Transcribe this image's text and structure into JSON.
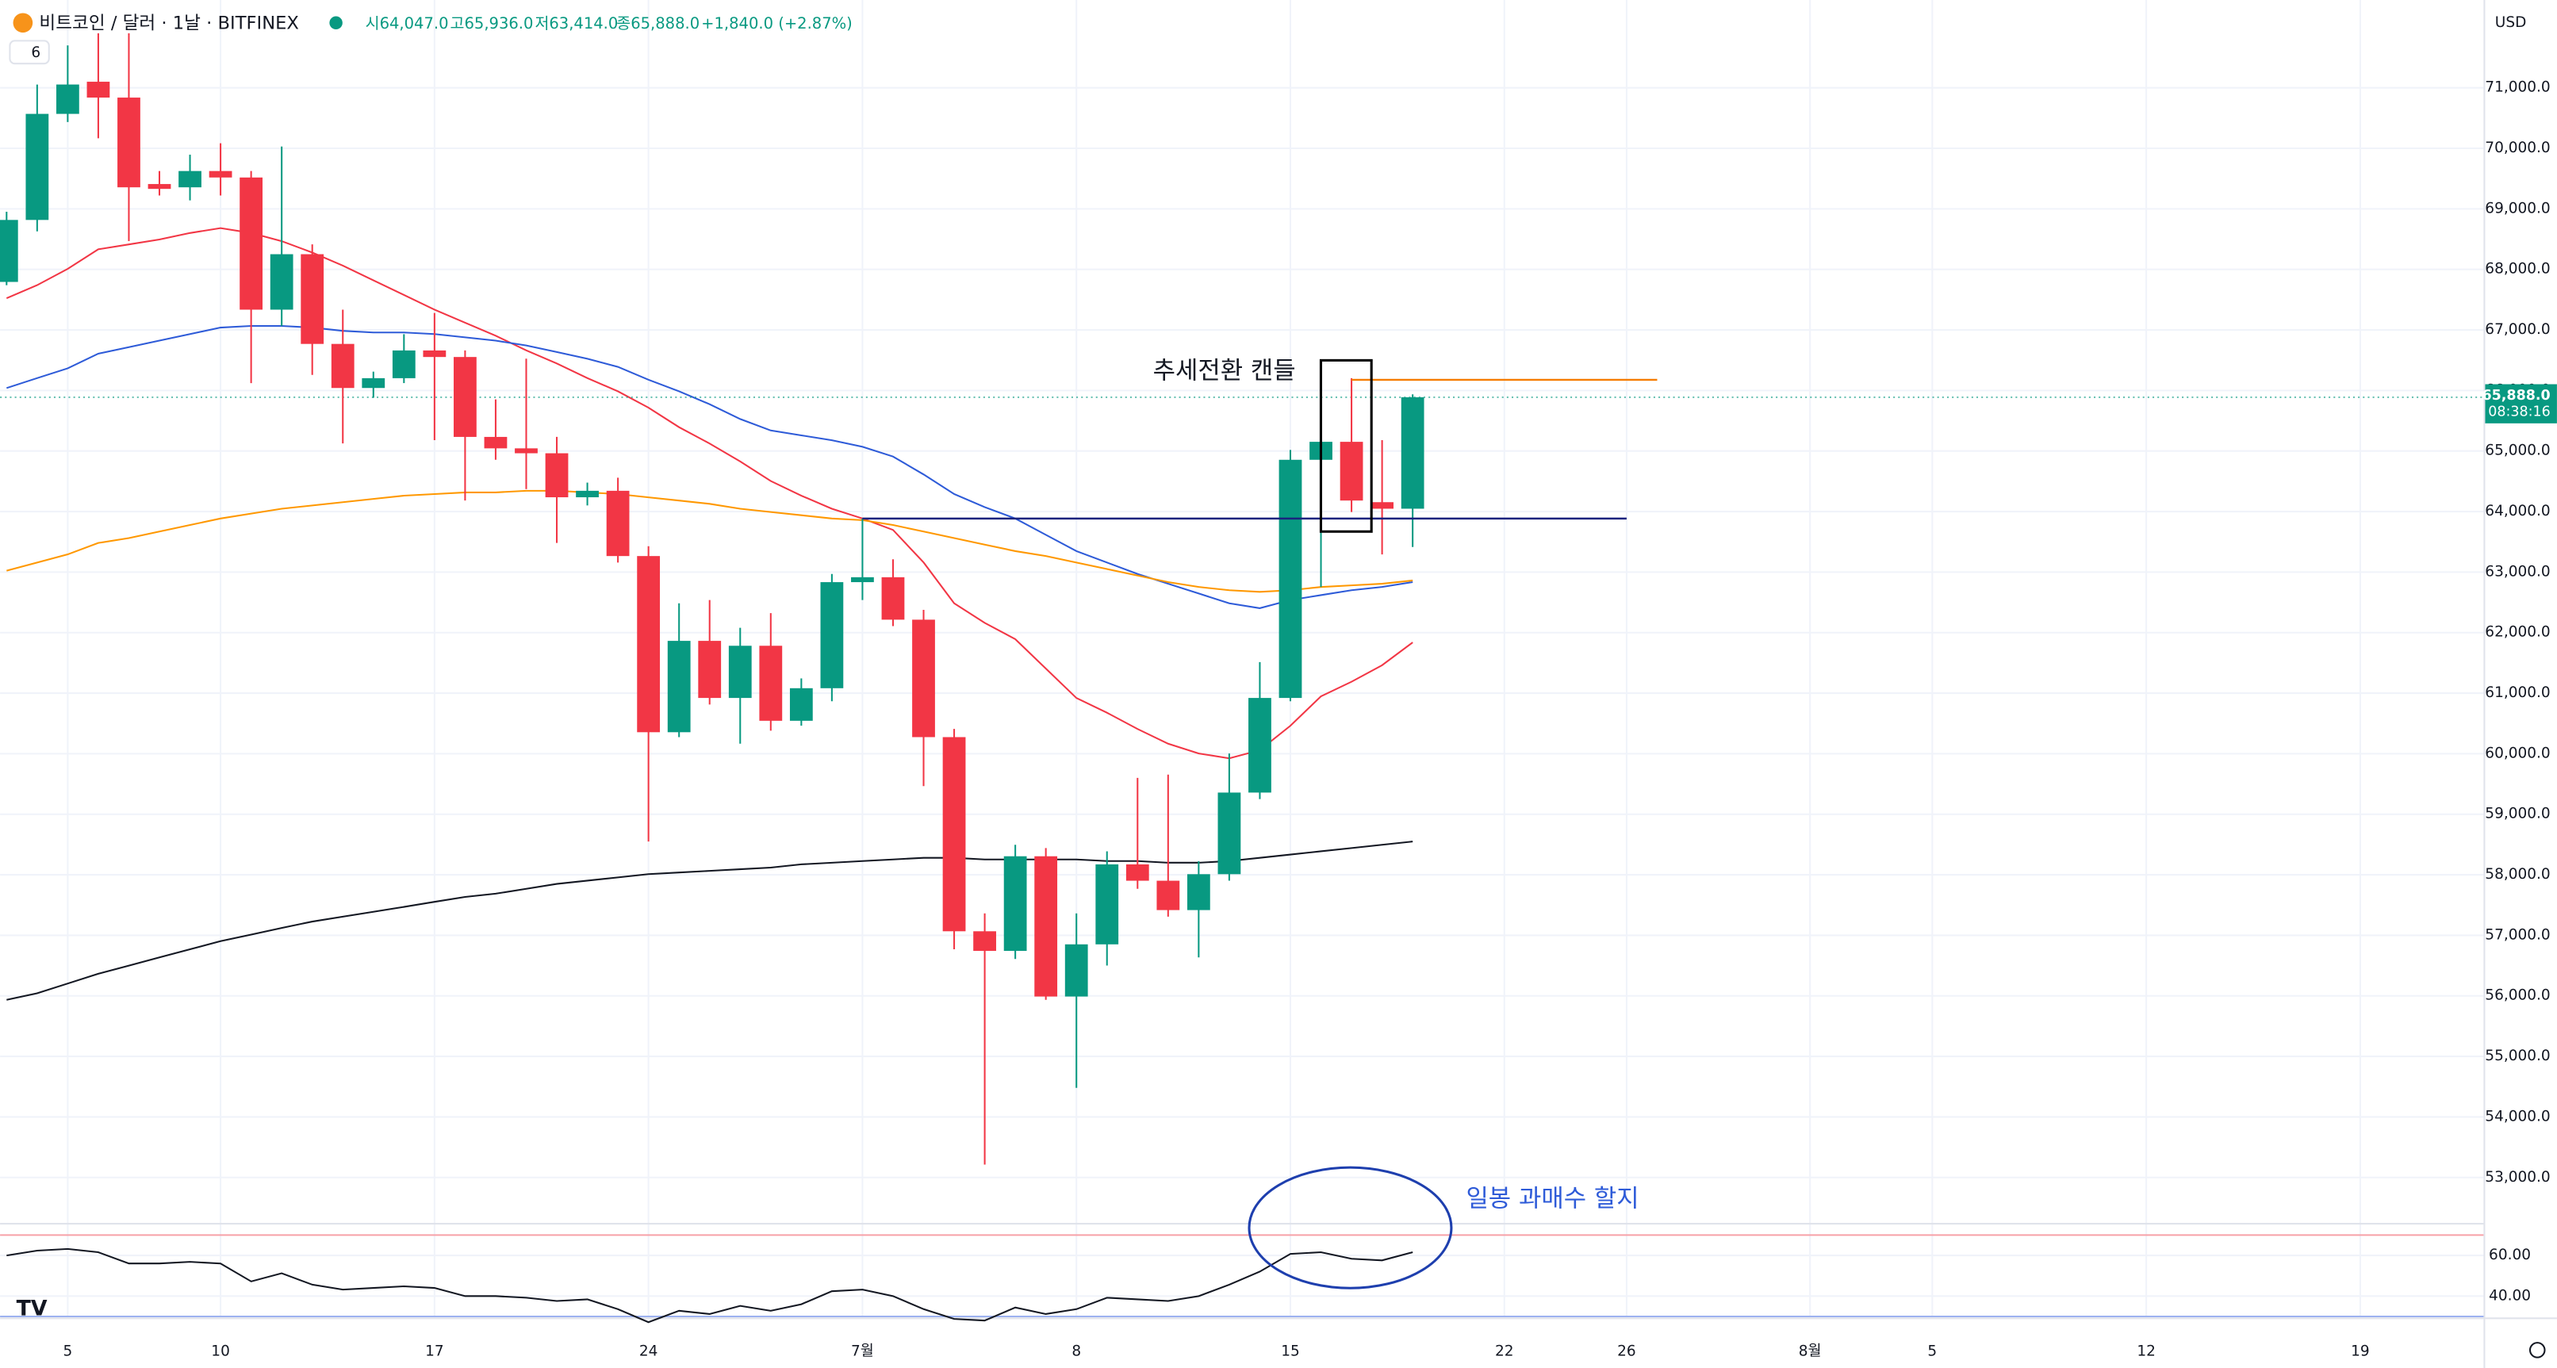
{
  "header": {
    "symbol": "비트코인 / 달러 · 1날 · BITFINEX",
    "ohlc": [
      "시64,047.0",
      "고65,936.0",
      "저63,414.0",
      "종65,888.0",
      "+1,840.0 (+2.87%)"
    ],
    "indicators": "6",
    "currency": "USD"
  },
  "chart_data": [
    {
      "type": "candlestick",
      "categories": [
        "06-03",
        "06-04",
        "06-05",
        "06-06",
        "06-07",
        "06-08",
        "06-09",
        "06-10",
        "06-11",
        "06-12",
        "06-13",
        "06-14",
        "06-15",
        "06-16",
        "06-17",
        "06-18",
        "06-19",
        "06-20",
        "06-21",
        "06-22",
        "06-23",
        "06-24",
        "06-25",
        "06-26",
        "06-27",
        "06-28",
        "06-29",
        "06-30",
        "07-01",
        "07-02",
        "07-03",
        "07-04",
        "07-05",
        "07-06",
        "07-07",
        "07-08",
        "07-09",
        "07-10",
        "07-11",
        "07-12",
        "07-13",
        "07-14",
        "07-15",
        "07-16",
        "07-17",
        "07-18",
        "07-19"
      ],
      "open": [
        67793,
        68817,
        70569,
        71100,
        70838,
        69410,
        69356,
        69625,
        69518,
        67335,
        68251,
        66769,
        66041,
        66203,
        66661,
        66553,
        65233,
        65044,
        64963,
        64236,
        64343,
        63265,
        60355,
        61864,
        60921,
        61783,
        60544,
        61082,
        62834,
        62915,
        62214,
        60274,
        57067,
        56743,
        58306,
        55989,
        56851,
        58172,
        57902,
        57417,
        58010,
        59358,
        60921,
        64855,
        65152,
        64155,
        64047
      ],
      "high": [
        68952,
        71054,
        71700,
        71900,
        71900,
        69625,
        69895,
        70084,
        69625,
        70030,
        68413,
        67335,
        66311,
        66930,
        67281,
        66661,
        65853,
        66526,
        65233,
        64478,
        64559,
        63427,
        62484,
        62538,
        62080,
        62322,
        61244,
        62969,
        63885,
        63212,
        62376,
        60409,
        57363,
        58495,
        58441,
        57363,
        58387,
        59601,
        59655,
        58226,
        60004,
        61514,
        65017,
        65502,
        66203,
        65179,
        65936
      ],
      "low": [
        67739,
        68628,
        70434,
        70165,
        68467,
        69221,
        69140,
        69221,
        66122,
        67065,
        66257,
        65125,
        65880,
        66122,
        65179,
        64182,
        64855,
        64370,
        63481,
        64101,
        63158,
        58549,
        60274,
        60813,
        60166,
        60381,
        60463,
        60867,
        62538,
        62107,
        59465,
        56770,
        53213,
        56609,
        55935,
        54480,
        56501,
        57768,
        57309,
        56635,
        57902,
        59250,
        60867,
        62753,
        63993,
        63292,
        63414
      ],
      "close": [
        68817,
        70569,
        71054,
        70838,
        69356,
        69330,
        69625,
        69518,
        67335,
        68251,
        66769,
        66041,
        66203,
        66661,
        66553,
        65233,
        65044,
        64963,
        64236,
        64343,
        63265,
        60355,
        61864,
        60921,
        61783,
        60544,
        61082,
        62834,
        62915,
        62214,
        60274,
        57067,
        56743,
        58306,
        55989,
        56851,
        58172,
        57902,
        57417,
        58010,
        59358,
        60921,
        64855,
        65152,
        64182,
        64047,
        65888
      ],
      "up_color": "#089981",
      "down_color": "#f23645",
      "series": [
        {
          "color": "#f23645",
          "values": [
            67523,
            67739,
            68009,
            68332,
            68413,
            68494,
            68601,
            68682,
            68601,
            68467,
            68278,
            68062,
            67820,
            67577,
            67335,
            67119,
            66904,
            66661,
            66446,
            66203,
            65987,
            65718,
            65394,
            65125,
            64828,
            64505,
            64262,
            64047,
            63885,
            63696,
            63158,
            62484,
            62161,
            61891,
            61406,
            60921,
            60678,
            60409,
            60166,
            60004,
            59923,
            60058,
            60463,
            60948,
            61190,
            61460,
            61837
          ]
        },
        {
          "color": "#2e5bd8",
          "values": [
            66041,
            66203,
            66365,
            66607,
            66715,
            66823,
            66931,
            67038,
            67065,
            67065,
            67038,
            66985,
            66958,
            66958,
            66931,
            66877,
            66823,
            66742,
            66634,
            66526,
            66391,
            66176,
            65987,
            65772,
            65529,
            65340,
            65260,
            65179,
            65071,
            64909,
            64613,
            64289,
            64074,
            63885,
            63616,
            63346,
            63158,
            62969,
            62807,
            62646,
            62484,
            62403,
            62538,
            62619,
            62699,
            62753,
            62834
          ]
        },
        {
          "color": "#ff9800",
          "values": [
            63023,
            63158,
            63292,
            63481,
            63562,
            63670,
            63778,
            63885,
            63966,
            64047,
            64101,
            64155,
            64209,
            64262,
            64289,
            64316,
            64316,
            64343,
            64343,
            64316,
            64289,
            64236,
            64182,
            64128,
            64047,
            63993,
            63939,
            63885,
            63858,
            63778,
            63670,
            63562,
            63454,
            63346,
            63265,
            63158,
            63050,
            62942,
            62834,
            62753,
            62699,
            62672,
            62699,
            62753,
            62780,
            62807,
            62861
          ]
        },
        {
          "color": "#131722",
          "values": [
            55935,
            56043,
            56205,
            56366,
            56501,
            56635,
            56770,
            56905,
            57013,
            57121,
            57228,
            57309,
            57390,
            57471,
            57552,
            57633,
            57687,
            57768,
            57849,
            57902,
            57956,
            58010,
            58037,
            58064,
            58091,
            58118,
            58172,
            58199,
            58226,
            58253,
            58280,
            58280,
            58253,
            58253,
            58253,
            58253,
            58226,
            58226,
            58199,
            58199,
            58226,
            58280,
            58334,
            58387,
            58441,
            58495,
            58549
          ]
        }
      ],
      "ylim": [
        52250,
        72450
      ],
      "yticks": [
        {
          "value": 53000,
          "label": "53,000.0"
        },
        {
          "value": 54000,
          "label": "54,000.0"
        },
        {
          "value": 55000,
          "label": "55,000.0"
        },
        {
          "value": 56000,
          "label": "56,000.0"
        },
        {
          "value": 57000,
          "label": "57,000.0"
        },
        {
          "value": 58000,
          "label": "58,000.0"
        },
        {
          "value": 59000,
          "label": "59,000.0"
        },
        {
          "value": 60000,
          "label": "60,000.0"
        },
        {
          "value": 61000,
          "label": "61,000.0"
        },
        {
          "value": 62000,
          "label": "62,000.0"
        },
        {
          "value": 63000,
          "label": "63,000.0"
        },
        {
          "value": 64000,
          "label": "64,000.0"
        },
        {
          "value": 65000,
          "label": "65,000.0"
        },
        {
          "value": 66000,
          "label": "66,000.0"
        },
        {
          "value": 67000,
          "label": "67,000.0"
        },
        {
          "value": 68000,
          "label": "68,000.0"
        },
        {
          "value": 69000,
          "label": "69,000.0"
        },
        {
          "value": 70000,
          "label": "70,000.0"
        },
        {
          "value": 71000,
          "label": "71,000.0"
        }
      ],
      "xticks": [
        {
          "value": "06-05",
          "label": "5"
        },
        {
          "value": "06-10",
          "label": "10"
        },
        {
          "value": "06-17",
          "label": "17"
        },
        {
          "value": "06-24",
          "label": "24"
        },
        {
          "value": "07-01",
          "label": "7월"
        },
        {
          "value": "07-08",
          "label": "8"
        },
        {
          "value": "07-15",
          "label": "15"
        },
        {
          "value": "07-22",
          "label": "22"
        },
        {
          "value": "07-26",
          "label": "26"
        },
        {
          "value": "08-01",
          "label": "8월"
        },
        {
          "value": "08-05",
          "label": "5"
        },
        {
          "value": "08-12",
          "label": "12"
        },
        {
          "value": "08-19",
          "label": "19"
        }
      ],
      "grid": true,
      "hlines": [
        {
          "value": 66176,
          "color": "#f57c00",
          "from": "07-17",
          "to": "07-27"
        },
        {
          "value": 63885,
          "color": "#1a237e",
          "from": "07-01",
          "to": "07-26"
        }
      ],
      "last_price": {
        "value": 65888,
        "label": "65,888.0",
        "countdown": "08:38:16"
      },
      "annotations": [
        "추세전환 캔들",
        "일봉 과매수 할지"
      ]
    },
    {
      "type": "line",
      "color": "#131722",
      "values": [
        60,
        62.4,
        63.2,
        61.6,
        56,
        56,
        56.8,
        56,
        47.2,
        51.2,
        45.6,
        43.2,
        44,
        44.8,
        44,
        40,
        40,
        39.2,
        37.6,
        38.4,
        33.6,
        27.2,
        32.8,
        31.2,
        35.2,
        32.8,
        36,
        42.4,
        43.2,
        40,
        33.6,
        28.8,
        28,
        34.4,
        31.2,
        33.6,
        39.2,
        38.4,
        37.6,
        40,
        45.6,
        52,
        60.8,
        61.6,
        58.4,
        57.6,
        61.6
      ],
      "ylim": [
        29.5,
        75.2
      ],
      "yticks": [
        {
          "value": 60,
          "label": "60.00"
        },
        {
          "value": 40,
          "label": "40.00"
        }
      ],
      "levels": [
        {
          "value": 70,
          "color": "#f7a1a8"
        },
        {
          "value": 30,
          "color": "#9db2f0"
        }
      ]
    }
  ]
}
